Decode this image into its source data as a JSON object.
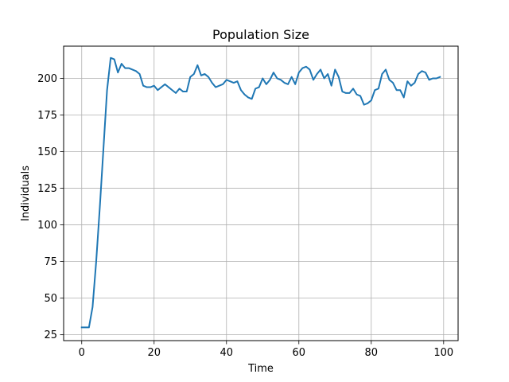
{
  "chart_data": {
    "type": "line",
    "title": "Population Size",
    "xlabel": "Time",
    "ylabel": "Individuals",
    "xlim": [
      -5,
      104
    ],
    "ylim": [
      21,
      222
    ],
    "xticks": [
      0,
      20,
      40,
      60,
      80,
      100
    ],
    "yticks": [
      25,
      50,
      75,
      100,
      125,
      150,
      175,
      200
    ],
    "grid": true,
    "line_color": "#1f77b4",
    "series": [
      {
        "x": [
          0,
          1,
          2,
          3,
          4,
          5,
          6,
          7,
          8,
          9,
          10,
          11,
          12,
          13,
          14,
          15,
          16,
          17,
          18,
          19,
          20,
          21,
          22,
          23,
          24,
          25,
          26,
          27,
          28,
          29,
          30,
          31,
          32,
          33,
          34,
          35,
          36,
          37,
          38,
          39,
          40,
          41,
          42,
          43,
          44,
          45,
          46,
          47,
          48,
          49,
          50,
          51,
          52,
          53,
          54,
          55,
          56,
          57,
          58,
          59,
          60,
          61,
          62,
          63,
          64,
          65,
          66,
          67,
          68,
          69,
          70,
          71,
          72,
          73,
          74,
          75,
          76,
          77,
          78,
          79,
          80,
          81,
          82,
          83,
          84,
          85,
          86,
          87,
          88,
          89,
          90,
          91,
          92,
          93,
          94,
          95,
          96,
          97,
          98,
          99
        ],
        "values": [
          30,
          30,
          30,
          44,
          75,
          112,
          152,
          192,
          214,
          213,
          204,
          210,
          207,
          207,
          206,
          205,
          203,
          195,
          194,
          194,
          195,
          192,
          194,
          196,
          194,
          192,
          190,
          193,
          191,
          191,
          201,
          203,
          209,
          202,
          203,
          201,
          197,
          194,
          195,
          196,
          199,
          198,
          197,
          198,
          192,
          189,
          187,
          186,
          193,
          194,
          200,
          196,
          199,
          204,
          200,
          199,
          197,
          196,
          201,
          196,
          204,
          207,
          208,
          206,
          199,
          203,
          206,
          200,
          203,
          195,
          206,
          201,
          191,
          190,
          190,
          193,
          189,
          188,
          182,
          183,
          185,
          192,
          193,
          203,
          206,
          199,
          197,
          192,
          192,
          187,
          198,
          195,
          197,
          203,
          205,
          204,
          199,
          200,
          200,
          201
        ]
      }
    ]
  }
}
